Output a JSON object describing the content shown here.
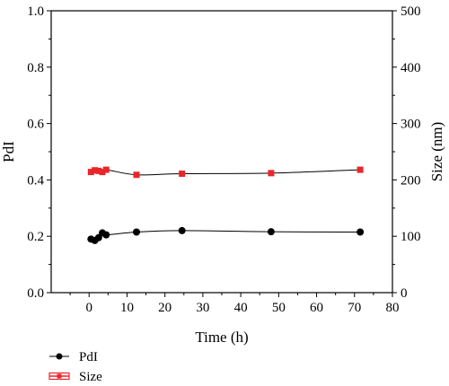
{
  "chart_data": {
    "type": "scatter",
    "xlabel": "Time (h)",
    "ylabel_left": "PdI",
    "ylabel_right": "Size (nm)",
    "xlim": [
      -10,
      80
    ],
    "ylim_left": [
      0,
      1.0
    ],
    "ylim_right": [
      0,
      500
    ],
    "x_ticks": [
      0,
      10,
      20,
      30,
      40,
      50,
      60,
      70,
      80
    ],
    "y_ticks_left": [
      0.0,
      0.2,
      0.4,
      0.6,
      0.8,
      1.0
    ],
    "y_tick_labels_left": [
      "0.0",
      "0.2",
      "0.4",
      "0.6",
      "0.8",
      "1.0"
    ],
    "y_ticks_right": [
      0,
      100,
      200,
      300,
      400,
      500
    ],
    "legend_position": "bottom-left",
    "series": [
      {
        "name": "PdI",
        "axis": "left",
        "marker": "circle",
        "color": "#000000",
        "x": [
          0.5,
          1.5,
          2.5,
          3.5,
          4.5,
          12.5,
          24.5,
          48,
          71.5
        ],
        "y": [
          0.19,
          0.185,
          0.195,
          0.212,
          0.205,
          0.215,
          0.22,
          0.216,
          0.215
        ]
      },
      {
        "name": "Size",
        "axis": "right",
        "marker": "square",
        "color": "#e8262b",
        "x": [
          0.5,
          1.5,
          2.5,
          3.5,
          4.5,
          12.5,
          24.5,
          48,
          71.5
        ],
        "y": [
          214,
          217,
          216,
          214,
          218,
          209,
          211,
          212,
          218
        ]
      }
    ]
  }
}
